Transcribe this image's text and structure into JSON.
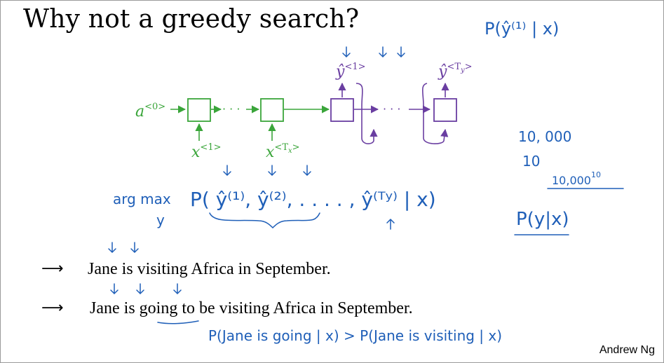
{
  "slide": {
    "title": "Why not a greedy search?",
    "credit": "Andrew Ng"
  },
  "diagram": {
    "a0": "a",
    "a0_sup": "<0>",
    "x1": "x",
    "x1_sup": "<1>",
    "xT": "x",
    "xT_sup": "<T",
    "xT_sub": "x",
    "xT_close": ">",
    "y1_sup": "<1>",
    "yT_sup": "<T",
    "yT_sub": "y",
    "yT_close": ">",
    "dots": "· · ·",
    "y_hat": "ŷ"
  },
  "annotations": {
    "top_prob": "P(ŷ⁽¹⁾ | x)",
    "argmax": "arg max",
    "argmax_y": "y",
    "argmax_expr": "P( ŷ⁽¹⁾, ŷ⁽²⁾, . . . . , ŷ⁽ᵀʸ⁾ | x)",
    "num_a": "10, 000",
    "num_b": "10",
    "num_c": "10,000",
    "num_c_exp": "10",
    "py_given_x": "P(y|x)",
    "compare": "P(Jane  is  going | x)  >  P(Jane  is  visiting | x)"
  },
  "sentences": [
    "Jane is visiting Africa in September.",
    "Jane is going to be visiting Africa in September."
  ],
  "icons": {
    "bullet": "right-arrow-icon"
  },
  "colors": {
    "encoder": "#3aa53a",
    "decoder": "#6a3ea1",
    "ink": "#1f5fb8"
  }
}
